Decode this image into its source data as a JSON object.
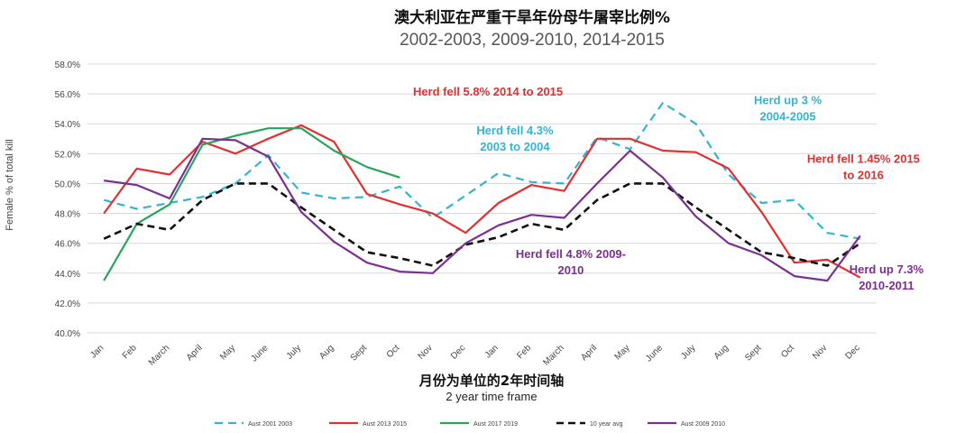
{
  "chart_data": {
    "type": "line",
    "title": "澳大利亚在严重干旱年份母牛屠宰比例%",
    "subtitle": "2002-2003, 2009-2010, 2014-2015",
    "xlabel": "月份为单位的2年时间轴",
    "xlabel_sub": "2 year time frame",
    "ylabel": "Female % of total kill",
    "ylim": [
      40,
      58
    ],
    "yticks": [
      "40.0%",
      "42.0%",
      "44.0%",
      "46.0%",
      "48.0%",
      "50.0%",
      "52.0%",
      "54.0%",
      "56.0%",
      "58.0%"
    ],
    "grid": true,
    "categories": [
      "Jan",
      "Feb",
      "March",
      "April",
      "May",
      "June",
      "July",
      "Aug",
      "Sept",
      "Oct",
      "Nov",
      "Dec",
      "Jan",
      "Feb",
      "March",
      "April",
      "May",
      "June",
      "July",
      "Aug",
      "Sept",
      "Oct",
      "Nov",
      "Dec"
    ],
    "series": [
      {
        "name": "Aust 2001 2003",
        "color": "#35b3d0",
        "dash": "dashed",
        "values": [
          48.9,
          48.3,
          48.7,
          49.1,
          50.0,
          51.9,
          49.4,
          49.0,
          49.1,
          49.8,
          47.7,
          49.2,
          50.7,
          50.1,
          50.0,
          53.1,
          52.3,
          55.4,
          54.0,
          50.6,
          48.7,
          48.9,
          46.7,
          46.3
        ]
      },
      {
        "name": "Aust 2013 2015",
        "color": "#e03030",
        "dash": "solid",
        "values": [
          48.0,
          51.0,
          50.6,
          52.8,
          52.0,
          53.0,
          53.9,
          52.8,
          49.3,
          48.6,
          48.0,
          46.7,
          48.7,
          49.9,
          49.5,
          53.0,
          53.0,
          52.2,
          52.1,
          51.0,
          48.1,
          44.7,
          44.9,
          43.7
        ]
      },
      {
        "name": "Aust 2017 2019",
        "color": "#27a55a",
        "dash": "solid",
        "values": [
          43.5,
          47.3,
          48.6,
          52.6,
          53.2,
          53.7,
          53.7,
          52.2,
          51.1,
          50.4,
          null,
          null,
          null,
          null,
          null,
          null,
          null,
          null,
          null,
          null,
          null,
          null,
          null,
          null
        ]
      },
      {
        "name": "10 year avg",
        "color": "#111111",
        "dash": "dashed-bold",
        "values": [
          46.3,
          47.3,
          46.9,
          48.9,
          50.0,
          50.0,
          48.4,
          46.9,
          45.4,
          45.0,
          44.5,
          45.9,
          46.4,
          47.3,
          46.9,
          48.9,
          50.0,
          50.0,
          48.4,
          46.9,
          45.4,
          45.0,
          44.5,
          46.0
        ]
      },
      {
        "name": "Aust 2009 2010",
        "color": "#7a3090",
        "dash": "solid",
        "values": [
          50.2,
          49.9,
          49.0,
          53.0,
          52.9,
          51.8,
          48.1,
          46.1,
          44.7,
          44.1,
          44.0,
          46.0,
          47.2,
          47.9,
          47.7,
          50.0,
          52.2,
          50.4,
          47.8,
          46.0,
          45.2,
          43.8,
          43.5,
          46.5
        ]
      }
    ],
    "annotations": [
      {
        "lines": [
          "Herd fell 5.8% 2014 to 2015"
        ],
        "color": "#e03030",
        "anchor": "start",
        "cat": 9.4,
        "y": 55.9
      },
      {
        "lines": [
          "Herd fell 4.3%",
          "2003 to 2004"
        ],
        "color": "#35b3d0",
        "anchor": "middle",
        "cat": 12.5,
        "y": 53.3
      },
      {
        "lines": [
          "Herd up 3 %",
          "2004-2005"
        ],
        "color": "#35b3d0",
        "anchor": "middle",
        "cat": 20.8,
        "y": 55.3
      },
      {
        "lines": [
          "Herd fell 1.45% 2015",
          "to 2016"
        ],
        "color": "#e03030",
        "anchor": "middle",
        "cat": 23.1,
        "y": 51.4
      },
      {
        "lines": [
          "Herd fell 4.8% 2009-",
          "2010"
        ],
        "color": "#7a3090",
        "anchor": "middle",
        "cat": 14.2,
        "y": 45.0
      },
      {
        "lines": [
          "Herd up 7.3%",
          "2010-2011"
        ],
        "color": "#7a3090",
        "anchor": "middle",
        "cat": 23.8,
        "y": 44.0
      }
    ]
  }
}
